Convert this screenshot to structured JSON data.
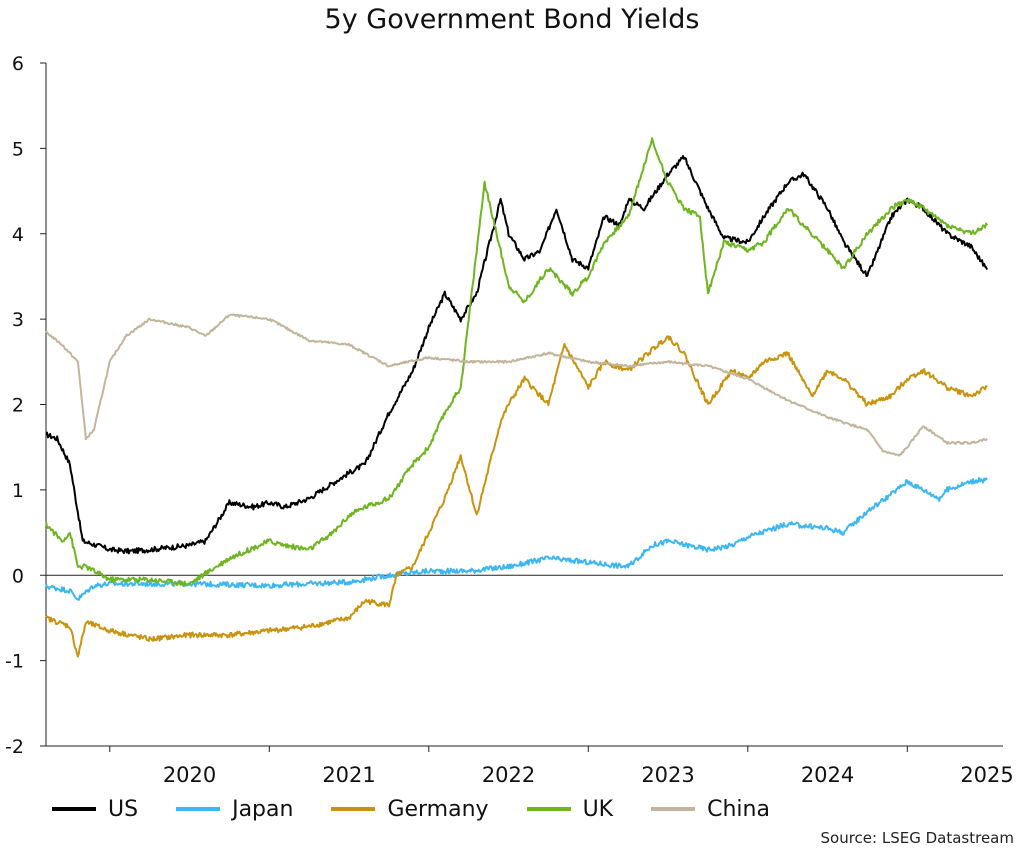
{
  "title": "5y Government Bond Yields",
  "source": "Source: LSEG Datastream",
  "chart_data": {
    "type": "line",
    "title": "5y Government Bond Yields",
    "xlabel": "",
    "ylabel": "",
    "x_ticks": [
      "2020",
      "2021",
      "2022",
      "2023",
      "2024",
      "2025"
    ],
    "xlim": [
      2019.6,
      2025.6
    ],
    "ylim": [
      -2,
      6
    ],
    "y_ticks": [
      -2,
      -1,
      0,
      1,
      2,
      3,
      4,
      5,
      6
    ],
    "zero_line": true,
    "grid": false,
    "legend_position": "bottom",
    "series": [
      {
        "name": "US",
        "color": "#000000",
        "x": [
          2019.6,
          2019.67,
          2019.75,
          2019.83,
          2019.92,
          2020.0,
          2020.12,
          2020.25,
          2020.5,
          2020.6,
          2020.75,
          2020.9,
          2021.0,
          2021.1,
          2021.25,
          2021.5,
          2021.6,
          2021.75,
          2021.9,
          2022.0,
          2022.1,
          2022.2,
          2022.3,
          2022.45,
          2022.5,
          2022.6,
          2022.7,
          2022.8,
          2022.9,
          2023.0,
          2023.1,
          2023.2,
          2023.25,
          2023.35,
          2023.5,
          2023.6,
          2023.75,
          2023.85,
          2024.0,
          2024.1,
          2024.25,
          2024.35,
          2024.5,
          2024.6,
          2024.75,
          2024.9,
          2025.0,
          2025.1,
          2025.25,
          2025.4,
          2025.5
        ],
        "y": [
          1.65,
          1.6,
          1.3,
          0.4,
          0.35,
          0.3,
          0.28,
          0.3,
          0.35,
          0.4,
          0.85,
          0.8,
          0.85,
          0.8,
          0.9,
          1.2,
          1.3,
          1.9,
          2.4,
          2.9,
          3.3,
          3.0,
          3.3,
          4.4,
          4.0,
          3.7,
          3.8,
          4.3,
          3.7,
          3.6,
          4.2,
          4.1,
          4.4,
          4.3,
          4.7,
          4.9,
          4.3,
          3.95,
          3.9,
          4.2,
          4.6,
          4.7,
          4.3,
          3.9,
          3.5,
          4.2,
          4.4,
          4.3,
          4.0,
          3.85,
          3.58
        ]
      },
      {
        "name": "Japan",
        "color": "#3db7f2",
        "x": [
          2019.6,
          2019.75,
          2019.8,
          2019.9,
          2020.0,
          2020.5,
          2021.0,
          2021.5,
          2021.75,
          2022.0,
          2022.25,
          2022.5,
          2022.75,
          2023.0,
          2023.25,
          2023.4,
          2023.5,
          2023.75,
          2023.9,
          2024.0,
          2024.25,
          2024.5,
          2024.6,
          2024.75,
          2024.9,
          2025.0,
          2025.2,
          2025.25,
          2025.4,
          2025.5
        ],
        "y": [
          -0.13,
          -0.18,
          -0.28,
          -0.12,
          -0.1,
          -0.1,
          -0.12,
          -0.08,
          0.0,
          0.05,
          0.05,
          0.1,
          0.2,
          0.15,
          0.1,
          0.35,
          0.4,
          0.3,
          0.35,
          0.45,
          0.6,
          0.55,
          0.5,
          0.75,
          0.95,
          1.1,
          0.9,
          1.0,
          1.1,
          1.12
        ]
      },
      {
        "name": "Germany",
        "color": "#c8930f",
        "x": [
          2019.6,
          2019.75,
          2019.8,
          2019.85,
          2020.0,
          2020.25,
          2020.5,
          2020.75,
          2021.0,
          2021.25,
          2021.5,
          2021.6,
          2021.75,
          2021.8,
          2021.9,
          2022.0,
          2022.1,
          2022.2,
          2022.3,
          2022.45,
          2022.5,
          2022.6,
          2022.75,
          2022.85,
          2023.0,
          2023.1,
          2023.25,
          2023.5,
          2023.6,
          2023.75,
          2023.9,
          2024.0,
          2024.1,
          2024.25,
          2024.4,
          2024.5,
          2024.6,
          2024.75,
          2024.9,
          2025.0,
          2025.1,
          2025.25,
          2025.4,
          2025.5
        ],
        "y": [
          -0.5,
          -0.6,
          -0.95,
          -0.55,
          -0.65,
          -0.75,
          -0.7,
          -0.7,
          -0.65,
          -0.6,
          -0.5,
          -0.3,
          -0.35,
          0.0,
          0.1,
          0.5,
          0.9,
          1.4,
          0.7,
          1.8,
          2.0,
          2.3,
          2.0,
          2.7,
          2.2,
          2.5,
          2.4,
          2.8,
          2.6,
          2.0,
          2.4,
          2.3,
          2.5,
          2.6,
          2.1,
          2.4,
          2.3,
          2.0,
          2.1,
          2.3,
          2.4,
          2.2,
          2.1,
          2.2
        ]
      },
      {
        "name": "UK",
        "color": "#6fb421",
        "x": [
          2019.6,
          2019.7,
          2019.75,
          2019.8,
          2019.85,
          2020.0,
          2020.25,
          2020.5,
          2020.75,
          2021.0,
          2021.1,
          2021.25,
          2021.4,
          2021.5,
          2021.6,
          2021.75,
          2021.9,
          2022.0,
          2022.1,
          2022.2,
          2022.35,
          2022.45,
          2022.5,
          2022.6,
          2022.75,
          2022.9,
          2023.0,
          2023.1,
          2023.25,
          2023.4,
          2023.5,
          2023.6,
          2023.7,
          2023.75,
          2023.85,
          2024.0,
          2024.1,
          2024.25,
          2024.4,
          2024.5,
          2024.6,
          2024.75,
          2024.9,
          2025.0,
          2025.1,
          2025.25,
          2025.4,
          2025.5
        ],
        "y": [
          0.6,
          0.4,
          0.5,
          0.1,
          0.1,
          -0.05,
          -0.05,
          -0.1,
          0.2,
          0.4,
          0.35,
          0.3,
          0.5,
          0.7,
          0.8,
          0.9,
          1.3,
          1.5,
          1.9,
          2.2,
          4.6,
          3.8,
          3.4,
          3.2,
          3.6,
          3.3,
          3.5,
          3.9,
          4.2,
          5.1,
          4.6,
          4.3,
          4.2,
          3.3,
          3.9,
          3.8,
          3.9,
          4.3,
          4.0,
          3.8,
          3.6,
          4.0,
          4.3,
          4.4,
          4.3,
          4.1,
          4.0,
          4.1
        ]
      },
      {
        "name": "China",
        "color": "#c2b59b",
        "x": [
          2019.6,
          2019.7,
          2019.8,
          2019.85,
          2019.9,
          2020.0,
          2020.1,
          2020.25,
          2020.5,
          2020.6,
          2020.75,
          2021.0,
          2021.25,
          2021.5,
          2021.6,
          2021.75,
          2022.0,
          2022.25,
          2022.5,
          2022.75,
          2023.0,
          2023.25,
          2023.5,
          2023.75,
          2024.0,
          2024.25,
          2024.5,
          2024.75,
          2024.85,
          2024.95,
          2025.0,
          2025.1,
          2025.25,
          2025.4,
          2025.5
        ],
        "y": [
          2.85,
          2.7,
          2.5,
          1.6,
          1.7,
          2.5,
          2.8,
          3.0,
          2.9,
          2.8,
          3.05,
          3.0,
          2.75,
          2.7,
          2.6,
          2.45,
          2.55,
          2.5,
          2.5,
          2.6,
          2.5,
          2.45,
          2.5,
          2.45,
          2.3,
          2.05,
          1.85,
          1.7,
          1.45,
          1.4,
          1.5,
          1.75,
          1.55,
          1.55,
          1.6
        ]
      }
    ]
  }
}
